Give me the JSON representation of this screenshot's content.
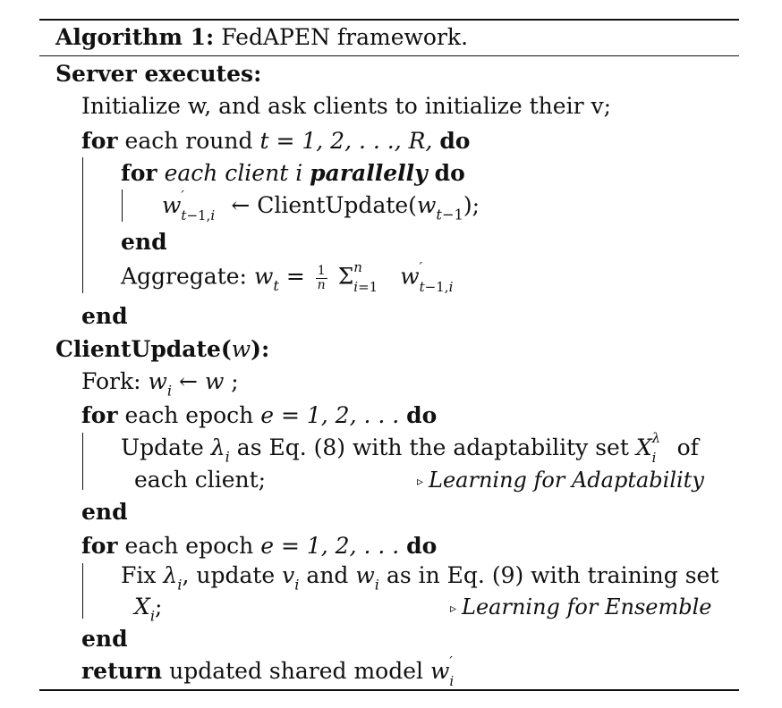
{
  "algorithm": {
    "label": "Algorithm 1:",
    "title": "FedAPEN framework."
  },
  "server": {
    "header": "Server executes:",
    "init_text": "Initialize w, and ask clients to initialize their v;",
    "for_round": "for each round t = 1, 2, . . ., R, do",
    "for_client": "for each client i parallelly do",
    "client_update_call": "w′t−1,i ← ClientUpdate(wt−1);",
    "end_inner": "end",
    "aggregate": "Aggregate: wt = 1/n Σni=1 w′t−1,i",
    "end_outer": "end"
  },
  "client": {
    "header": "ClientUpdate(w):",
    "fork": "Fork: wi ← w ;",
    "for_epoch_1": "for each epoch e = 1, 2, . . . do",
    "update_line1": "Update λi as Eq. (8) with the adaptability set Xλi of",
    "update_line2": "each client;",
    "comment_adaptability": "Learning for Adaptability",
    "end_1": "end",
    "for_epoch_2": "for each epoch e = 1, 2, . . . do",
    "fix_line1": "Fix λi, update vi and wi as in Eq. (9) with training set",
    "fix_line2": "Xi;",
    "comment_ensemble": "Learning for Ensemble",
    "end_2": "end",
    "return_line": "return updated shared model w′i"
  }
}
